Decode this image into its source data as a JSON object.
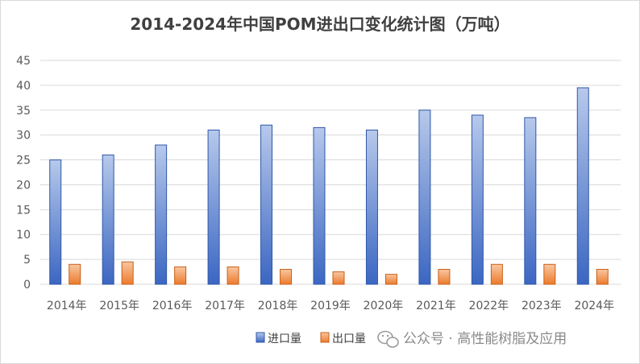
{
  "chart_data": {
    "type": "bar",
    "title": "2014-2024年中国POM进出口变化统计图（万吨）",
    "categories": [
      "2014年",
      "2015年",
      "2016年",
      "2017年",
      "2018年",
      "2019年",
      "2020年",
      "2021年",
      "2022年",
      "2023年",
      "2024年"
    ],
    "series": [
      {
        "name": "进口量",
        "color": "#4472c4",
        "values": [
          25,
          26,
          28,
          31,
          32,
          31.5,
          31,
          35,
          34,
          33.5,
          39.5
        ]
      },
      {
        "name": "出口量",
        "color": "#ed7d31",
        "values": [
          4,
          4.5,
          3.5,
          3.5,
          3,
          2.5,
          2,
          3,
          4,
          4,
          3
        ]
      }
    ],
    "yticks": [
      "0",
      "5",
      "10",
      "15",
      "20",
      "25",
      "30",
      "35",
      "40",
      "45"
    ],
    "ylim": [
      0,
      45
    ],
    "grid": true,
    "legend": "bottom-right"
  },
  "watermark": {
    "icon": "wechat-icon",
    "text": "公众号 · 高性能树脂及应用"
  }
}
